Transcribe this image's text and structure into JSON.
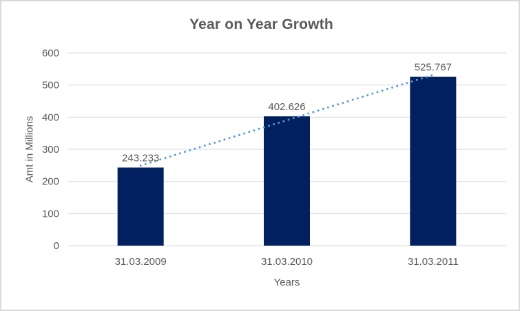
{
  "chart_data": {
    "type": "bar",
    "title": "Year on Year Growth",
    "categories": [
      "31.03.2009",
      "31.03.2010",
      "31.03.2011"
    ],
    "values": [
      243.233,
      402.626,
      525.767
    ],
    "data_labels": [
      "243.233",
      "402.626",
      "525.767"
    ],
    "xlabel": "Years",
    "ylabel": "Amt in Millions",
    "ylim": [
      0,
      600
    ],
    "yticks": [
      0,
      100,
      200,
      300,
      400,
      500,
      600
    ],
    "grid": true,
    "legend": "none",
    "trendline": {
      "type": "linear",
      "style": "dotted"
    },
    "colors": {
      "bar": "#002060",
      "trendline": "#5B9BD5",
      "gridline": "#D9D9D9",
      "axis_text": "#595959",
      "label_text": "#595959",
      "title_text": "#595959",
      "frame_border": "#D9D9D9",
      "background": "#FFFFFF"
    }
  }
}
